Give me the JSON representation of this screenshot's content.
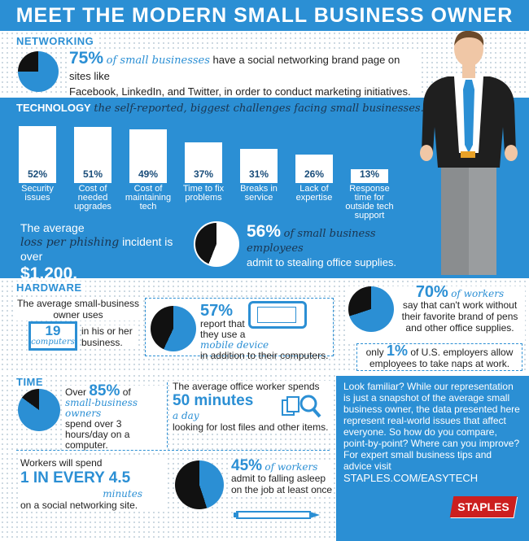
{
  "title": "MEET THE MODERN SMALL BUSINESS OWNER",
  "networking": {
    "heading": "NETWORKING",
    "pct": "75%",
    "script": "of small businesses",
    "text1": "have a social networking brand page on sites like",
    "text2": "Facebook, LinkedIn, and Twitter, in order to conduct marketing initiatives."
  },
  "technology": {
    "heading": "TECHNOLOGY",
    "subtitle": "the self-reported, biggest challenges facing small businesses.",
    "bars": [
      {
        "pct": "52%",
        "value": 52,
        "label": "Security issues"
      },
      {
        "pct": "51%",
        "value": 51,
        "label": "Cost of needed upgrades"
      },
      {
        "pct": "49%",
        "value": 49,
        "label": "Cost of maintaining tech"
      },
      {
        "pct": "37%",
        "value": 37,
        "label": "Time to fix problems"
      },
      {
        "pct": "31%",
        "value": 31,
        "label": "Breaks in service"
      },
      {
        "pct": "26%",
        "value": 26,
        "label": "Lack of expertise"
      },
      {
        "pct": "13%",
        "value": 13,
        "label": "Response time for outside tech support"
      }
    ],
    "phish1": "The average",
    "phish_script": "loss per phishing",
    "phish2": "incident is over",
    "phish_value": "$1,200.",
    "steal_pct": "56%",
    "steal_script": "of small business employees",
    "steal_text": "admit to stealing office supplies."
  },
  "hardware": {
    "heading": "HARDWARE",
    "owner_text": "The average small-business owner uses",
    "computers_num": "19",
    "computers_word": "computers",
    "owner_text2": "in his or her business.",
    "mobile_pct": "57%",
    "mobile_text1": "report that they use a",
    "mobile_script": "mobile device",
    "mobile_text2": "in addition to their computers.",
    "pens_pct": "70%",
    "pens_script": "of workers",
    "pens_text": "say that can't work without their favorite brand of pens and other office supplies.",
    "naps_pre": "only",
    "naps_pct": "1%",
    "naps_text": "of U.S. employers allow employees to take naps at work."
  },
  "time": {
    "heading": "TIME",
    "over": "Over",
    "hours_pct": "85%",
    "of": "of",
    "hours_script": "small-business owners",
    "hours_text": "spend over 3 hours/day on a computer.",
    "files_text1": "The average office worker spends",
    "files_value": "50 minutes",
    "files_script": "a day",
    "files_text2": "looking for lost files and other items.",
    "social_text1": "Workers will spend",
    "social_value": "1 IN EVERY 4.5",
    "social_script": "minutes",
    "social_text2": "on a social networking site.",
    "asleep_pct": "45%",
    "asleep_script": "of workers",
    "asleep_text": "admit to falling asleep on the job at least once"
  },
  "promo": {
    "text": "Look familiar? While our representation is just a snapshot of the average small business owner, the data presented here represent real-world issues that affect everyone. So how do you compare, point-by-point? Where can you improve? For expert small business tips and advice visit",
    "url": "STAPLES.COM/EASYTECH",
    "logo": "STAPLES"
  },
  "colors": {
    "blue": "#2b8fd4",
    "dark": "#222222",
    "red": "#cc1f1f"
  }
}
